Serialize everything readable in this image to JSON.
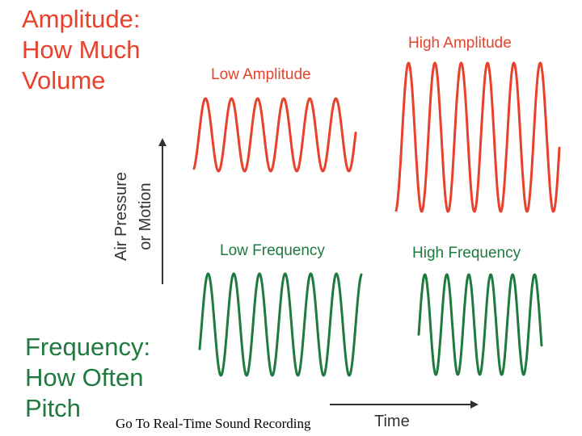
{
  "amplitude_heading": [
    "Amplitude:",
    "How Much",
    "Volume"
  ],
  "frequency_heading": [
    "Frequency:",
    "How Often",
    "Pitch"
  ],
  "waves": {
    "low_amplitude": {
      "label": "Low Amplitude",
      "color": "#e8412c"
    },
    "high_amplitude": {
      "label": "High Amplitude",
      "color": "#e8412c"
    },
    "low_frequency": {
      "label": "Low Frequency",
      "color": "#1e7a3e"
    },
    "high_frequency": {
      "label": "High Frequency",
      "color": "#1e7a3e"
    }
  },
  "axes": {
    "y_label": [
      "Air Pressure",
      "or Motion"
    ],
    "x_label": "Time"
  },
  "link_text": "Go To Real-Time Sound Recording",
  "colors": {
    "red": "#e8412c",
    "green": "#1e7a3e",
    "axis": "#333333"
  }
}
